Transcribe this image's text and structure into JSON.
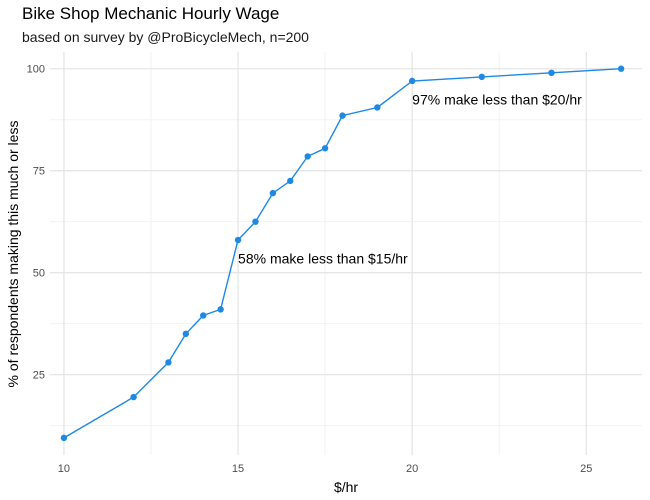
{
  "chart_data": {
    "type": "line",
    "title": "Bike Shop Mechanic Hourly Wage",
    "subtitle": "based on survey by @ProBicycleMech, n=200",
    "xlabel": "$/hr",
    "ylabel": "% of respondents making this much or less",
    "xlim": [
      9.6,
      26.6
    ],
    "ylim": [
      5.3,
      104.1
    ],
    "x_ticks": [
      10,
      15,
      20,
      25
    ],
    "y_ticks": [
      25,
      50,
      75,
      100
    ],
    "grid": true,
    "color": "#1e88e5",
    "series": [
      {
        "x": [
          10,
          12,
          13,
          13.5,
          14,
          14.5,
          15,
          15.5,
          16,
          16.5,
          17,
          17.5,
          18,
          19,
          20,
          22,
          24,
          26
        ],
        "y": [
          9.5,
          19.5,
          28,
          35,
          39.5,
          41,
          58,
          62.5,
          69.5,
          72.5,
          78.5,
          80.5,
          88.5,
          90.5,
          97,
          98,
          99,
          100
        ]
      }
    ],
    "annotations": [
      {
        "text": "58% make less than $15/hr",
        "x": 15,
        "y": 53.5
      },
      {
        "text": "97% make less than $20/hr",
        "x": 20,
        "y": 92.5
      }
    ]
  }
}
